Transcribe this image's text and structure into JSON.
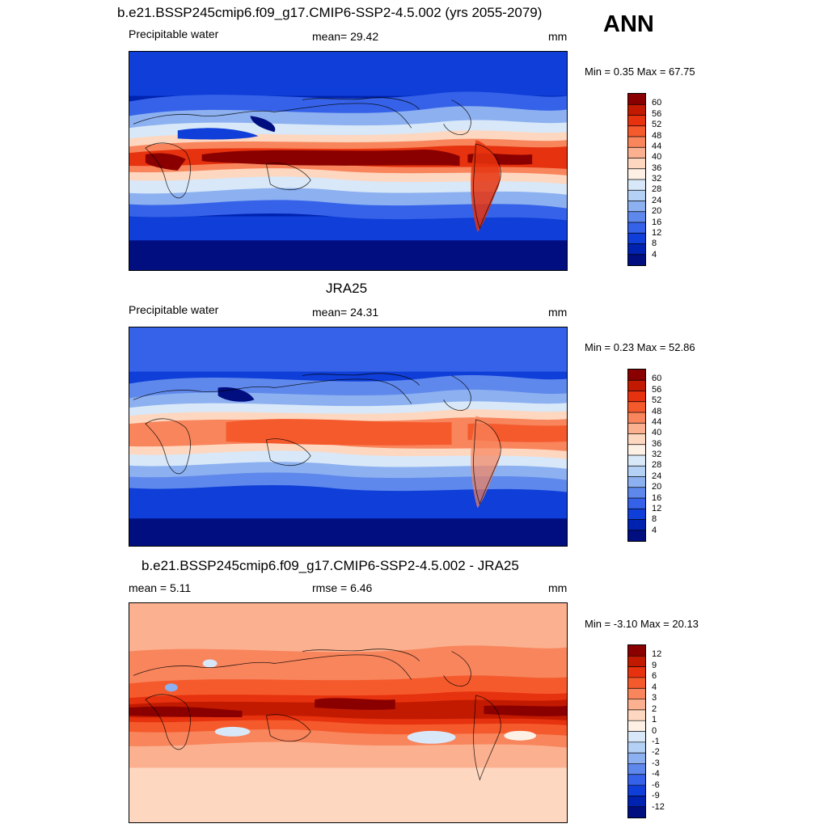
{
  "panels": [
    {
      "title": "b.e21.BSSP245cmip6.f09_g17.CMIP6-SSP2-4.5.002 (yrs 2055-2079)",
      "left_label": "Precipitable water",
      "center_label": "mean=  29.42",
      "units": "mm",
      "minmax": "Min =   0.35 Max =  67.75",
      "palette": "absolute",
      "colorbar_labels": [
        "60",
        "56",
        "52",
        "48",
        "44",
        "40",
        "36",
        "32",
        "28",
        "24",
        "20",
        "16",
        "12",
        "8",
        "4"
      ],
      "colors": [
        "#8a0000",
        "#c21a00",
        "#e6320e",
        "#f55a2d",
        "#f8855c",
        "#fbb08f",
        "#fdd7c0",
        "#fdf0e4",
        "#d8e8f8",
        "#b4d0f4",
        "#8cb0f0",
        "#5f88ec",
        "#3562e8",
        "#0f3ed8",
        "#0022b0",
        "#000e80"
      ]
    },
    {
      "title": "JRA25",
      "left_label": "Precipitable water",
      "center_label": "mean=  24.31",
      "units": "mm",
      "minmax": "Min =   0.23 Max =  52.86",
      "palette": "absolute",
      "colorbar_labels": [
        "60",
        "56",
        "52",
        "48",
        "44",
        "40",
        "36",
        "32",
        "28",
        "24",
        "20",
        "16",
        "12",
        "8",
        "4"
      ],
      "colors": [
        "#8a0000",
        "#c21a00",
        "#e6320e",
        "#f55a2d",
        "#f8855c",
        "#fbb08f",
        "#fdd7c0",
        "#fdf0e4",
        "#d8e8f8",
        "#b4d0f4",
        "#8cb0f0",
        "#5f88ec",
        "#3562e8",
        "#0f3ed8",
        "#0022b0",
        "#000e80"
      ]
    },
    {
      "title": "b.e21.BSSP245cmip6.f09_g17.CMIP6-SSP2-4.5.002 - JRA25",
      "left_label": "mean =   5.11",
      "center_label": "rmse =   6.46",
      "units": "mm",
      "minmax": "Min =  -3.10 Max =  20.13",
      "palette": "difference",
      "colorbar_labels": [
        "12",
        "9",
        "6",
        "4",
        "3",
        "2",
        "1",
        "0",
        "-1",
        "-2",
        "-3",
        "-4",
        "-6",
        "-9",
        "-12"
      ],
      "colors": [
        "#8a0000",
        "#c21a00",
        "#e6320e",
        "#f55a2d",
        "#f8855c",
        "#fbb08f",
        "#fdd7c0",
        "#fdf0e4",
        "#d8e8f8",
        "#b4d0f4",
        "#8cb0f0",
        "#5f88ec",
        "#3562e8",
        "#0f3ed8",
        "#0022b0",
        "#000e80"
      ]
    }
  ],
  "season": "ANN"
}
